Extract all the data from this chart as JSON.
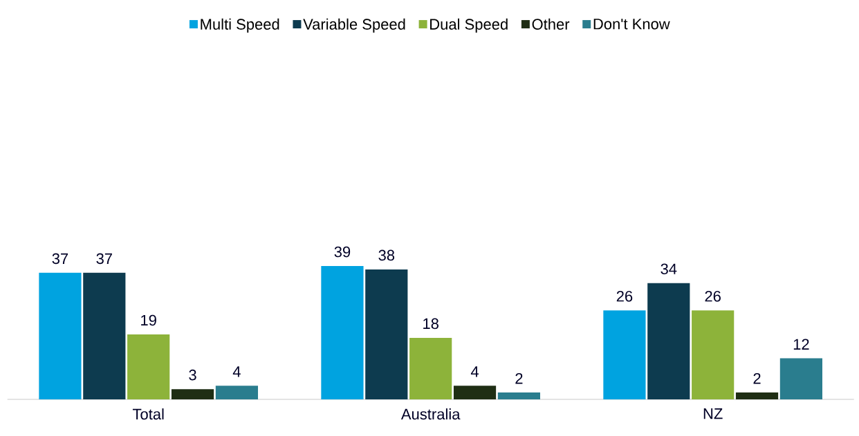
{
  "chart_data": {
    "type": "bar",
    "categories": [
      "Total",
      "Australia",
      "NZ"
    ],
    "series": [
      {
        "name": "Multi Speed",
        "color": "#00a3e0",
        "values": [
          37,
          39,
          26
        ]
      },
      {
        "name": "Variable Speed",
        "color": "#0d3b4f",
        "values": [
          37,
          38,
          34
        ]
      },
      {
        "name": "Dual Speed",
        "color": "#8db33a",
        "values": [
          19,
          18,
          26
        ]
      },
      {
        "name": "Other",
        "color": "#1f2e14",
        "values": [
          3,
          4,
          2
        ]
      },
      {
        "name": "Don't Know",
        "color": "#2a7d8e",
        "values": [
          4,
          2,
          12
        ]
      }
    ],
    "data_labels": true,
    "legend": "top"
  }
}
